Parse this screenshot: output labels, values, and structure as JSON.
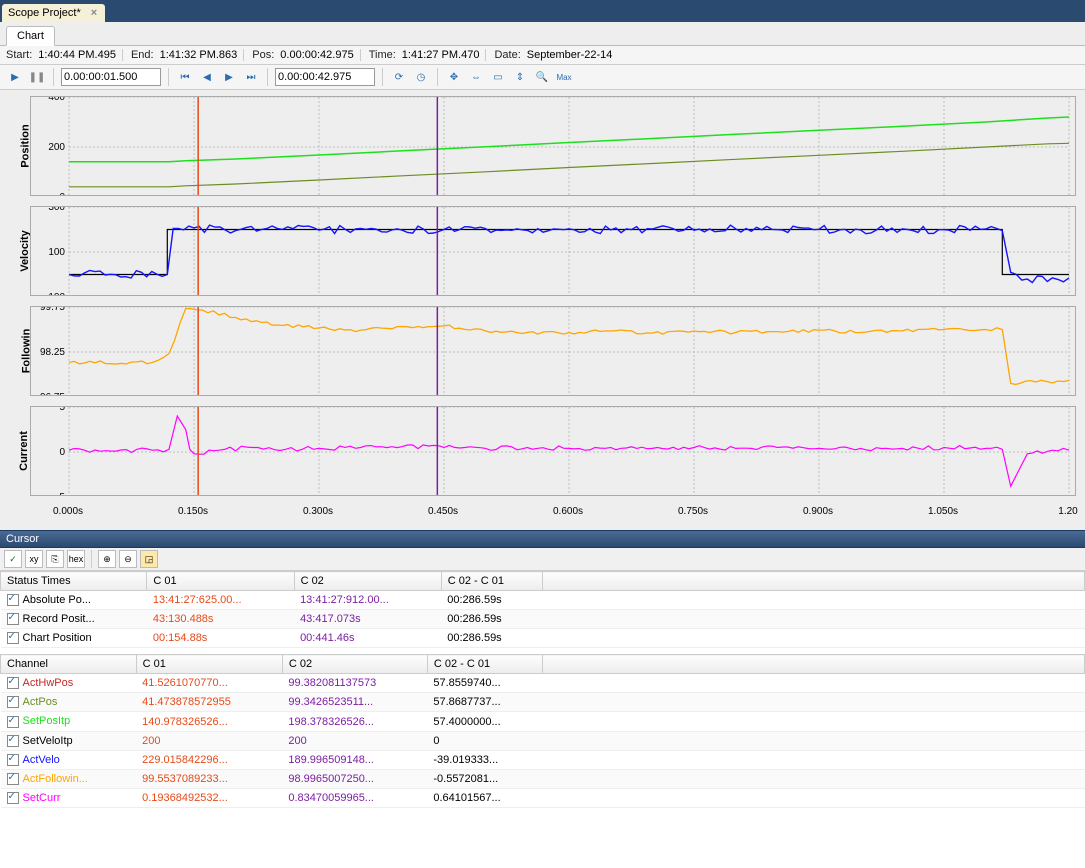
{
  "tab_title": "Scope Project*",
  "sub_tab": "Chart",
  "info": {
    "start_label": "Start:",
    "start": "1:40:44 PM.495",
    "end_label": "End:",
    "end": "1:41:32 PM.863",
    "pos_label": "Pos:",
    "pos": "0.00:00:42.975",
    "time_label": "Time:",
    "time": "1:41:27 PM.470",
    "date_label": "Date:",
    "date": "September-22-14"
  },
  "toolbar": {
    "time_input1": "0.00:00:01.500",
    "time_input2": "0.00:00:42.975"
  },
  "x_axis": {
    "x0": 0.0,
    "x1": 1.2,
    "tick_step": 0.15,
    "ticks": [
      "0.000s",
      "0.150s",
      "0.300s",
      "0.450s",
      "0.600s",
      "0.750s",
      "0.900s",
      "1.050s",
      "1.20"
    ],
    "grid_color": "#bdbdbd",
    "cursor1_x": 0.155,
    "cursor2_x": 0.442,
    "cursor1_color": "#e64a19",
    "cursor2_color": "#7b1fa2"
  },
  "charts": [
    {
      "name": "Position",
      "height": 100,
      "ylim": [
        0,
        400
      ],
      "ytick_step": 200,
      "bg": "#eeeeee",
      "series": [
        {
          "name": "SetPosItp",
          "color": "#1de01d",
          "width": 1.5,
          "pts": [
            [
              0,
              141
            ],
            [
              0.12,
              141
            ],
            [
              0.14,
              145
            ],
            [
              0.2,
              152
            ],
            [
              0.3,
              168
            ],
            [
              0.4,
              185
            ],
            [
              0.5,
              201
            ],
            [
              0.6,
              218
            ],
            [
              0.7,
              234
            ],
            [
              0.8,
              251
            ],
            [
              0.9,
              267
            ],
            [
              1.0,
              283
            ],
            [
              1.1,
              300
            ],
            [
              1.175,
              316
            ],
            [
              1.2,
              320
            ]
          ]
        },
        {
          "name": "ActPos",
          "color": "#6b8e23",
          "width": 1.2,
          "pts": [
            [
              0,
              41
            ],
            [
              0.12,
              41
            ],
            [
              0.14,
              45
            ],
            [
              0.2,
              52
            ],
            [
              0.3,
              68
            ],
            [
              0.4,
              85
            ],
            [
              0.5,
              101
            ],
            [
              0.6,
              118
            ],
            [
              0.7,
              134
            ],
            [
              0.8,
              151
            ],
            [
              0.9,
              167
            ],
            [
              1.0,
              183
            ],
            [
              1.1,
              200
            ],
            [
              1.175,
              213
            ],
            [
              1.2,
              215
            ]
          ]
        }
      ]
    },
    {
      "name": "Velocity",
      "height": 90,
      "ylim": [
        -100,
        300
      ],
      "ytick_step": 200,
      "bg": "#eeeeee",
      "series": [
        {
          "name": "SetVeloItp",
          "color": "#000000",
          "width": 1.2,
          "pts": [
            [
              0,
              0
            ],
            [
              0.118,
              0
            ],
            [
              0.118,
              200
            ],
            [
              0.14,
              200
            ],
            [
              1.12,
              200
            ],
            [
              1.12,
              0
            ],
            [
              1.2,
              0
            ]
          ]
        },
        {
          "name": "ActVelo",
          "color": "#1414ff",
          "width": 1.4,
          "noise": 18,
          "pts": [
            [
              0,
              0
            ],
            [
              0.118,
              0
            ],
            [
              0.125,
              205
            ],
            [
              0.15,
              207
            ],
            [
              0.2,
              195
            ],
            [
              0.25,
              205
            ],
            [
              0.3,
              197
            ],
            [
              0.35,
              205
            ],
            [
              0.4,
              197
            ],
            [
              0.45,
              200
            ],
            [
              0.5,
              204
            ],
            [
              0.55,
              196
            ],
            [
              0.6,
              203
            ],
            [
              0.65,
              198
            ],
            [
              0.7,
              202
            ],
            [
              0.75,
              197
            ],
            [
              0.8,
              203
            ],
            [
              0.85,
              199
            ],
            [
              0.9,
              201
            ],
            [
              0.95,
              198
            ],
            [
              1.0,
              203
            ],
            [
              1.05,
              199
            ],
            [
              1.1,
              202
            ],
            [
              1.12,
              195
            ],
            [
              1.13,
              10
            ],
            [
              1.15,
              -20
            ],
            [
              1.18,
              -15
            ],
            [
              1.2,
              -15
            ]
          ]
        }
      ]
    },
    {
      "name": "Followin",
      "height": 90,
      "ylim": [
        96.75,
        99.75
      ],
      "ytick_step": 1.5,
      "bg": "#eeeeee",
      "series": [
        {
          "name": "ActFollowing",
          "color": "#ffa500",
          "width": 1.3,
          "noise": 0.06,
          "pts": [
            [
              0,
              97.9
            ],
            [
              0.1,
              97.9
            ],
            [
              0.12,
              98.2
            ],
            [
              0.14,
              99.7
            ],
            [
              0.16,
              99.65
            ],
            [
              0.2,
              99.4
            ],
            [
              0.25,
              99.15
            ],
            [
              0.3,
              99.05
            ],
            [
              0.35,
              98.98
            ],
            [
              0.4,
              99.1
            ],
            [
              0.45,
              99.12
            ],
            [
              0.5,
              98.95
            ],
            [
              0.55,
              98.9
            ],
            [
              0.6,
              98.9
            ],
            [
              0.65,
              98.95
            ],
            [
              0.7,
              98.88
            ],
            [
              0.75,
              98.95
            ],
            [
              0.8,
              98.9
            ],
            [
              0.85,
              98.93
            ],
            [
              0.9,
              98.98
            ],
            [
              0.95,
              98.9
            ],
            [
              1.0,
              98.95
            ],
            [
              1.05,
              99.0
            ],
            [
              1.1,
              99.0
            ],
            [
              1.12,
              99.0
            ],
            [
              1.13,
              97.2
            ],
            [
              1.16,
              97.25
            ],
            [
              1.2,
              97.3
            ]
          ]
        }
      ]
    },
    {
      "name": "Current",
      "height": 90,
      "ylim": [
        -5,
        5
      ],
      "ytick_step": 5,
      "bg": "#eeeeee",
      "series": [
        {
          "name": "SetCurr",
          "color": "#ff00ff",
          "width": 1.2,
          "noise": 0.25,
          "pts": [
            [
              0,
              0.2
            ],
            [
              0.1,
              0.2
            ],
            [
              0.12,
              0.3
            ],
            [
              0.13,
              4.0
            ],
            [
              0.14,
              2.5
            ],
            [
              0.145,
              0.3
            ],
            [
              0.15,
              -0.2
            ],
            [
              0.18,
              0.2
            ],
            [
              0.22,
              0.5
            ],
            [
              0.26,
              0.3
            ],
            [
              0.3,
              0.4
            ],
            [
              0.35,
              0.5
            ],
            [
              0.4,
              0.6
            ],
            [
              0.45,
              0.5
            ],
            [
              0.5,
              0.4
            ],
            [
              0.55,
              0.5
            ],
            [
              0.6,
              0.4
            ],
            [
              0.65,
              0.5
            ],
            [
              0.7,
              0.4
            ],
            [
              0.75,
              0.5
            ],
            [
              0.8,
              0.4
            ],
            [
              0.85,
              0.5
            ],
            [
              0.9,
              0.4
            ],
            [
              0.95,
              0.4
            ],
            [
              1.0,
              0.4
            ],
            [
              1.05,
              0.5
            ],
            [
              1.1,
              0.4
            ],
            [
              1.12,
              0.3
            ],
            [
              1.13,
              -3.8
            ],
            [
              1.14,
              -2.0
            ],
            [
              1.15,
              -0.2
            ],
            [
              1.18,
              0.2
            ],
            [
              1.2,
              0.2
            ]
          ]
        }
      ]
    }
  ],
  "cursor_panel": {
    "title": "Cursor"
  },
  "status_table": {
    "headers": [
      "Status Times",
      "C 01",
      "C 02",
      "C 02 - C 01"
    ],
    "rows": [
      {
        "label": "Absolute Po...",
        "c01": "13:41:27:625.00...",
        "c02": "13:41:27:912.00...",
        "diff": "00:286.59s"
      },
      {
        "label": "Record Posit...",
        "c01": "43:130.488s",
        "c02": "43:417.073s",
        "diff": "00:286.59s"
      },
      {
        "label": "Chart Position",
        "c01": "00:154.88s",
        "c02": "00:441.46s",
        "diff": "00:286.59s"
      }
    ]
  },
  "channel_table": {
    "headers": [
      "Channel",
      "C 01",
      "C 02",
      "C 02 - C 01"
    ],
    "rows": [
      {
        "label": "ActHwPos",
        "color": "#c62828",
        "c01": "41.5261070770...",
        "c02": "99.382081137573",
        "diff": "57.8559740..."
      },
      {
        "label": "ActPos",
        "color": "#6b8e23",
        "c01": "41.473878572955",
        "c02": "99.3426523511...",
        "diff": "57.8687737..."
      },
      {
        "label": "SetPosItp",
        "color": "#1de01d",
        "c01": "140.978326526...",
        "c02": "198.378326526...",
        "diff": "57.4000000..."
      },
      {
        "label": "SetVeloItp",
        "color": "#000000",
        "c01": "200",
        "c02": "200",
        "diff": "0"
      },
      {
        "label": "ActVelo",
        "color": "#1414ff",
        "c01": "229.015842296...",
        "c02": "189.996509148...",
        "diff": "-39.019333..."
      },
      {
        "label": "ActFollowin...",
        "color": "#ffa500",
        "c01": "99.5537089233...",
        "c02": "98.9965007250...",
        "diff": "-0.5572081..."
      },
      {
        "label": "SetCurr",
        "color": "#ff00ff",
        "c01": "0.19368492532...",
        "c02": "0.83470059965...",
        "diff": "0.64101567..."
      }
    ]
  },
  "col_c01_color": "#e64a19",
  "col_c02_color": "#7b1fa2"
}
